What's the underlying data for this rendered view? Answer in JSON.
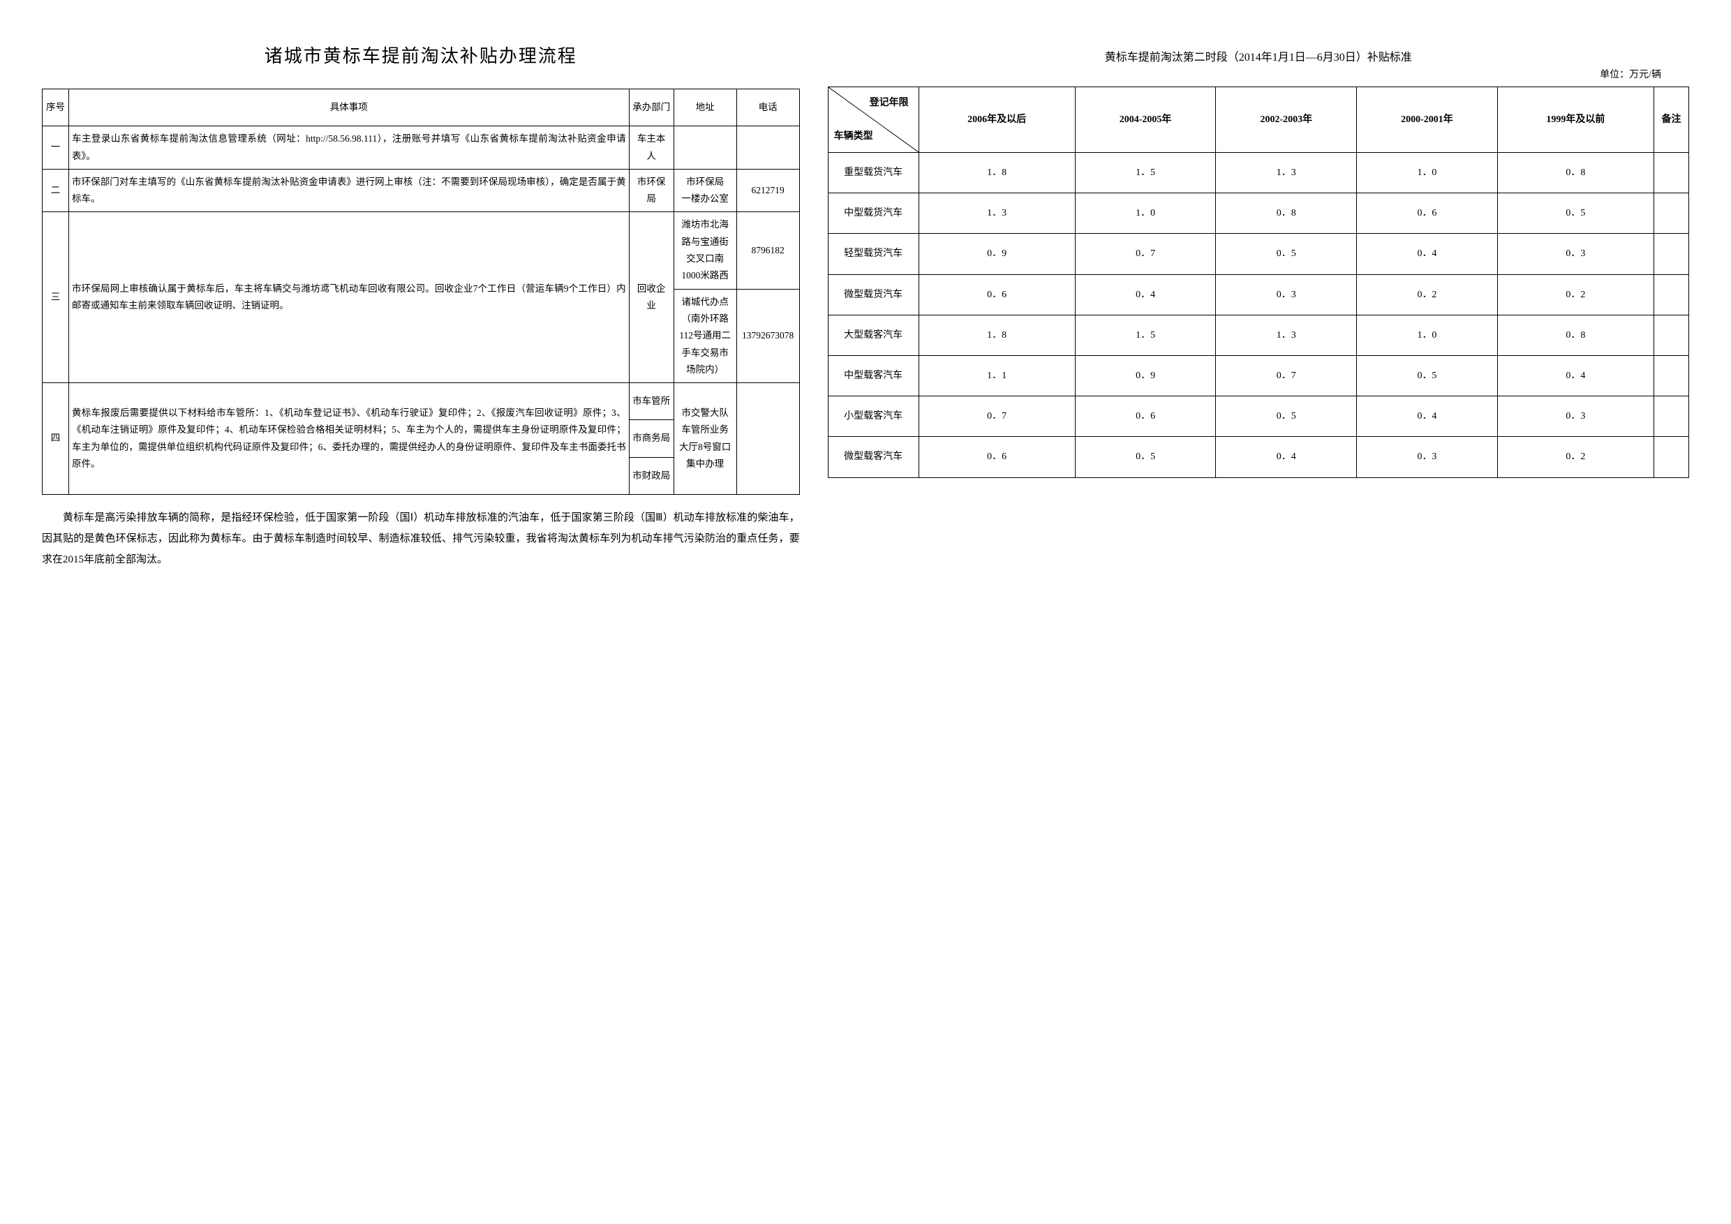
{
  "left": {
    "title": "诸城市黄标车提前淘汰补贴办理流程",
    "headers": {
      "seq": "序号",
      "item": "具体事项",
      "dept": "承办部门",
      "addr": "地址",
      "phone": "电话"
    },
    "rows": [
      {
        "seq": "一",
        "item": "车主登录山东省黄标车提前淘汰信息管理系统（网址：http://58.56.98.111），注册账号并填写《山东省黄标车提前淘汰补贴资金申请表》。",
        "dept": "车主本人",
        "addr": "",
        "phone": ""
      },
      {
        "seq": "二",
        "item": "市环保部门对车主填写的《山东省黄标车提前淘汰补贴资金申请表》进行网上审核（注：不需要到环保局现场审核），确定是否属于黄标车。",
        "dept": "市环保局",
        "addr": "市环保局\n一楼办公室",
        "phone": "6212719"
      },
      {
        "seq": "三",
        "item": "市环保局网上审核确认属于黄标车后，车主将车辆交与潍坊鸢飞机动车回收有限公司。回收企业7个工作日（营运车辆9个工作日）内邮寄或通知车主前来领取车辆回收证明、注销证明。",
        "dept": "回收企业",
        "addrs": [
          {
            "addr": "潍坊市北海路与宝通街交叉口南1000米路西",
            "phone": "8796182"
          },
          {
            "addr": "诸城代办点（南外环路112号通用二手车交易市场院内）",
            "phone": "13792673078"
          }
        ]
      },
      {
        "seq": "四",
        "item": "黄标车报废后需要提供以下材料给市车管所：1、《机动车登记证书》、《机动车行驶证》复印件；2、《报废汽车回收证明》原件；3、《机动车注销证明》原件及复印件；4、机动车环保检验合格相关证明材料；5、车主为个人的，需提供车主身份证明原件及复印件；车主为单位的，需提供单位组织机构代码证原件及复印件；6、委托办理的，需提供经办人的身份证明原件、复印件及车主书面委托书原件。",
        "depts": [
          "市车管所",
          "市商务局",
          "市财政局"
        ],
        "addr": "市交警大队车管所业务大厅8号窗口集中办理",
        "phone": ""
      }
    ],
    "footnote": "黄标车是高污染排放车辆的简称，是指经环保检验，低于国家第一阶段（国Ⅰ）机动车排放标准的汽油车，低于国家第三阶段（国Ⅲ）机动车排放标准的柴油车，因其贴的是黄色环保标志，因此称为黄标车。由于黄标车制造时间较早、制造标准较低、排气污染较重，我省将淘汰黄标车列为机动车排气污染防治的重点任务，要求在2015年底前全部淘汰。"
  },
  "right": {
    "title": "黄标车提前淘汰第二时段（2014年1月1日—6月30日）补贴标准",
    "unit": "单位：万元/辆",
    "diag_top": "登记年限",
    "diag_bottom": "车辆类型",
    "year_cols": [
      "2006年及以后",
      "2004-2005年",
      "2002-2003年",
      "2000-2001年",
      "1999年及以前"
    ],
    "remark_header": "备注",
    "rows": [
      {
        "type": "重型载货汽车",
        "v": [
          "1．8",
          "1．5",
          "1．3",
          "1．0",
          "0．8"
        ],
        "remark": ""
      },
      {
        "type": "中型载货汽车",
        "v": [
          "1．3",
          "1．0",
          "0．8",
          "0．6",
          "0．5"
        ],
        "remark": ""
      },
      {
        "type": "轻型载货汽车",
        "v": [
          "0．9",
          "0．7",
          "0．5",
          "0．4",
          "0．3"
        ],
        "remark": ""
      },
      {
        "type": "微型载货汽车",
        "v": [
          "0．6",
          "0．4",
          "0．3",
          "0．2",
          "0．2"
        ],
        "remark": ""
      },
      {
        "type": "大型载客汽车",
        "v": [
          "1．8",
          "1．5",
          "1．3",
          "1．0",
          "0．8"
        ],
        "remark": ""
      },
      {
        "type": "中型载客汽车",
        "v": [
          "1．1",
          "0．9",
          "0．7",
          "0．5",
          "0．4"
        ],
        "remark": ""
      },
      {
        "type": "小型载客汽车",
        "v": [
          "0．7",
          "0．6",
          "0．5",
          "0．4",
          "0．3"
        ],
        "remark": ""
      },
      {
        "type": "微型载客汽车",
        "v": [
          "0．6",
          "0．5",
          "0．4",
          "0．3",
          "0．2"
        ],
        "remark": ""
      }
    ]
  }
}
